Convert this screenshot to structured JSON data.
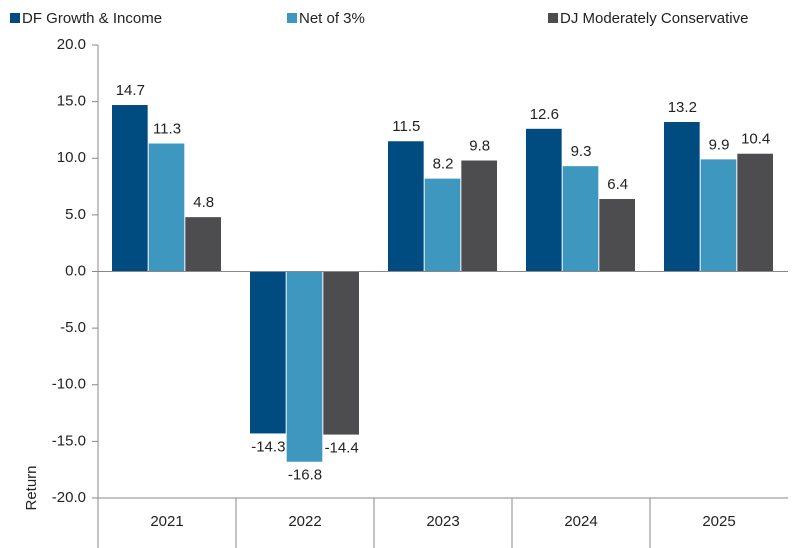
{
  "chart_data": {
    "type": "bar",
    "y_label": "Return",
    "categories": [
      "2021",
      "2022",
      "2023",
      "2024",
      "2025"
    ],
    "series": [
      {
        "name": "DF Growth & Income",
        "color": "#004b7f",
        "values": [
          14.7,
          -14.3,
          11.5,
          12.6,
          13.2
        ]
      },
      {
        "name": "Net of 3%",
        "color": "#3d97be",
        "values": [
          11.3,
          -16.8,
          8.2,
          9.3,
          9.9
        ]
      },
      {
        "name": "DJ Moderately Conservative",
        "color": "#4d4d4f",
        "values": [
          4.8,
          -14.4,
          9.8,
          6.4,
          10.4
        ]
      }
    ],
    "ylim": [
      -20,
      20
    ],
    "yticks": [
      {
        "value": -20,
        "label": "-20.0"
      },
      {
        "value": -15,
        "label": "-15.0"
      },
      {
        "value": -10,
        "label": "-10.0"
      },
      {
        "value": -5,
        "label": "-5.0"
      },
      {
        "value": 0,
        "label": "0.0"
      },
      {
        "value": 5,
        "label": "5.0"
      },
      {
        "value": 10,
        "label": "10.0"
      },
      {
        "value": 15,
        "label": "15.0"
      },
      {
        "value": 20,
        "label": "20.0"
      }
    ],
    "grid": false,
    "legend": "top"
  }
}
